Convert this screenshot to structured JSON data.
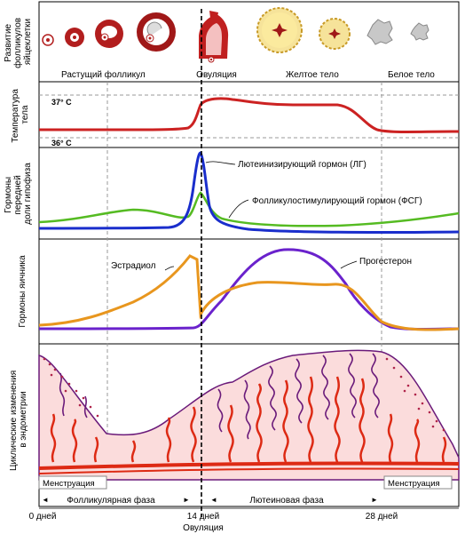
{
  "row_labels": {
    "follicles": [
      "Развитие",
      "фолликулов",
      "яйцеклетки"
    ],
    "temperature": [
      "Температура",
      "тела"
    ],
    "pituitary": [
      "Гормоны",
      "передней",
      "доли гипофиза"
    ],
    "ovarian": [
      "Гормоны яичника"
    ],
    "endometrium": [
      "Циклические изменения",
      "в эндометрии"
    ]
  },
  "follicle_stages": {
    "growing": "Растущий фолликул",
    "ovulation": "Овуляция",
    "yellow": "Желтое тело",
    "white": "Белое тело"
  },
  "temperature_ticks": {
    "high": "37° C",
    "low": "36° C"
  },
  "hormone_labels": {
    "lh": "Лютеинизирующий гормон (ЛГ)",
    "fsh": "Фолликулостимулирующий гормон (ФСГ)",
    "estradiol": "Эстрадиол",
    "progesterone": "Прогестерон"
  },
  "phases": {
    "menstruation_left": "Менструация",
    "menstruation_right": "Менструация",
    "follicular": "Фолликулярная фаза",
    "luteal": "Лютеиновая фаза"
  },
  "days": {
    "d0": "0 дней",
    "d14": "14 дней",
    "d28": "28 дней",
    "ovulation": "Овуляция"
  },
  "colors": {
    "temperature": "#cc2222",
    "lh": "#1a2ecc",
    "fsh": "#55bb22",
    "estradiol": "#e8961e",
    "progesterone": "#6a22cc",
    "endometrium_fill": "#fbdcdc",
    "vessel": "#dd2a14",
    "gland": "#6a1a7a"
  }
}
